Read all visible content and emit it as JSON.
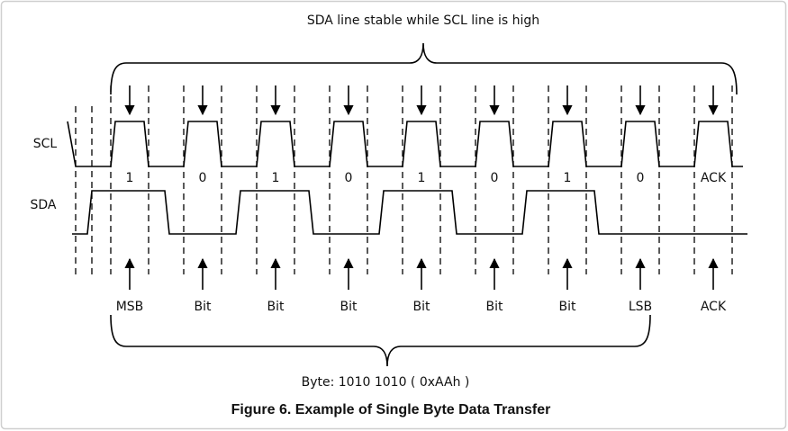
{
  "title": "SDA line stable while SCL line is high",
  "signals": [
    "SCL",
    "SDA"
  ],
  "bits": [
    "1",
    "0",
    "1",
    "0",
    "1",
    "0",
    "1",
    "0",
    "ACK"
  ],
  "bit_labels": [
    "MSB",
    "Bit",
    "Bit",
    "Bit",
    "Bit",
    "Bit",
    "Bit",
    "LSB",
    "ACK"
  ],
  "byte_label": "Byte: 1010 1010 ( 0xAAh )",
  "caption": "Figure 6. Example of Single Byte Data Transfer"
}
